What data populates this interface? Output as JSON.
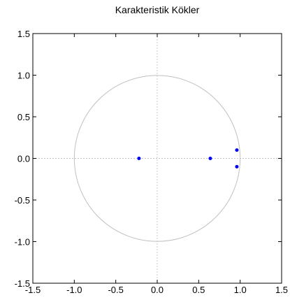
{
  "chart_data": {
    "type": "scatter",
    "title": "Karakteristik Kökler",
    "xlabel": "",
    "ylabel": "",
    "xlim": [
      -1.5,
      1.5
    ],
    "ylim": [
      -1.5,
      1.5
    ],
    "x_ticks": [
      "-1.5",
      "-1.0",
      "-0.5",
      "0.0",
      "0.5",
      "1.0",
      "1.5"
    ],
    "y_ticks": [
      "1.5",
      "1.0",
      "0.5",
      "0.0",
      "-0.5",
      "-1.0",
      "-1.5"
    ],
    "unit_circle_radius": 1.0,
    "grid": "dashed zero lines",
    "point_color": "#0000ff",
    "circle_color": "#c0c0c0",
    "series": [
      {
        "points": [
          {
            "x": -0.22,
            "y": 0.0
          },
          {
            "x": 0.64,
            "y": 0.0
          },
          {
            "x": 0.96,
            "y": 0.1
          },
          {
            "x": 0.96,
            "y": -0.1
          }
        ]
      }
    ]
  }
}
